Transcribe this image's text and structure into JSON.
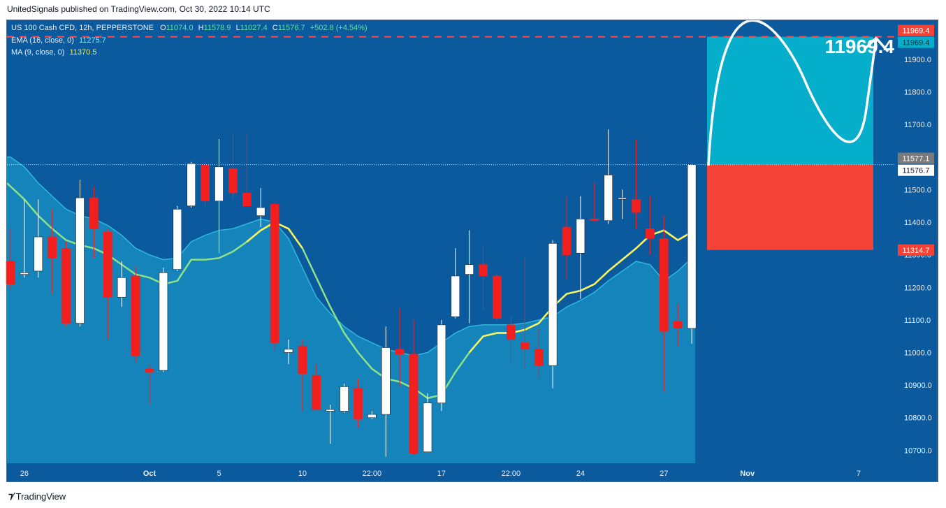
{
  "header": {
    "published": "UnitedSignals published on TradingView.com, Oct 30, 2022 10:14 UTC"
  },
  "legend": {
    "symbol": "US 100 Cash CFD, 12h, PEPPERSTONE",
    "o_label": "O",
    "o": "11074.0",
    "h_label": "H",
    "h": "11578.9",
    "l_label": "L",
    "l": "11027.4",
    "c_label": "C",
    "c": "11576.7",
    "change": "+502.8 (+4.54%)",
    "ema_label": "EMA (16, close, 0)",
    "ema_value": "11275.7",
    "ma_label": "MA (9, close, 0)",
    "ma_value": "11370.5"
  },
  "target_label": "11969.4",
  "footer": {
    "brand": "TradingView"
  },
  "colors": {
    "bg": "#0b5a9e",
    "up": "#ffffff",
    "down": "#f21f1f",
    "ema_fill": "#1a9bc9",
    "ma_line": "#fdf35a",
    "ema_line": "#8ee28a",
    "target": "#05aecb",
    "stop": "#f44336",
    "dash": "#ff4a4a"
  },
  "chart_data": {
    "type": "candlestick",
    "y_axis_unit": "USD",
    "ylim": [
      10660,
      12020
    ],
    "y_ticks": [
      10700,
      10800,
      10900,
      11000,
      11100,
      11200,
      11300,
      11400,
      11500,
      11600,
      11700,
      11800,
      11900
    ],
    "y_tick_labels": [
      "10700.0",
      "10800.0",
      "10900.0",
      "11000.0",
      "11100.0",
      "11200.0",
      "11300.0",
      "11400.0",
      "11500.0",
      "11600.0",
      "11700.0",
      "11800.0",
      "11900.0"
    ],
    "x_tick_labels": [
      "26",
      "Oct",
      "5",
      "10",
      "22:00",
      "17",
      "22:00",
      "24",
      "27",
      "Nov",
      "7"
    ],
    "x_tick_index": [
      1,
      10,
      15,
      21,
      26,
      31,
      36,
      41,
      47,
      53,
      61
    ],
    "candles": [
      {
        "o": 11280,
        "h": 11380,
        "l": 11195,
        "c": 11210
      },
      {
        "o": 11240,
        "h": 11470,
        "l": 11230,
        "c": 11245
      },
      {
        "o": 11250,
        "h": 11470,
        "l": 11230,
        "c": 11355
      },
      {
        "o": 11355,
        "h": 11440,
        "l": 11180,
        "c": 11290
      },
      {
        "o": 11320,
        "h": 11340,
        "l": 11080,
        "c": 11090
      },
      {
        "o": 11090,
        "h": 11530,
        "l": 11080,
        "c": 11475
      },
      {
        "o": 11475,
        "h": 11510,
        "l": 11290,
        "c": 11380
      },
      {
        "o": 11370,
        "h": 11380,
        "l": 11040,
        "c": 11170
      },
      {
        "o": 11170,
        "h": 11280,
        "l": 11140,
        "c": 11230
      },
      {
        "o": 11235,
        "h": 11265,
        "l": 10970,
        "c": 10990
      },
      {
        "o": 10950,
        "h": 10965,
        "l": 10840,
        "c": 10940
      },
      {
        "o": 10945,
        "h": 11260,
        "l": 10940,
        "c": 11245
      },
      {
        "o": 11255,
        "h": 11450,
        "l": 11250,
        "c": 11440
      },
      {
        "o": 11450,
        "h": 11585,
        "l": 11445,
        "c": 11580
      },
      {
        "o": 11575,
        "h": 11585,
        "l": 11450,
        "c": 11465
      },
      {
        "o": 11465,
        "h": 11655,
        "l": 11305,
        "c": 11570
      },
      {
        "o": 11565,
        "h": 11670,
        "l": 11470,
        "c": 11490
      },
      {
        "o": 11490,
        "h": 11670,
        "l": 11450,
        "c": 11450
      },
      {
        "o": 11420,
        "h": 11505,
        "l": 11385,
        "c": 11445
      },
      {
        "o": 11455,
        "h": 11460,
        "l": 11005,
        "c": 11030
      },
      {
        "o": 11000,
        "h": 11040,
        "l": 10965,
        "c": 11010
      },
      {
        "o": 11020,
        "h": 11040,
        "l": 10820,
        "c": 10935
      },
      {
        "o": 10930,
        "h": 10965,
        "l": 10825,
        "c": 10825
      },
      {
        "o": 10820,
        "h": 10840,
        "l": 10720,
        "c": 10825
      },
      {
        "o": 10820,
        "h": 10905,
        "l": 10815,
        "c": 10895
      },
      {
        "o": 10890,
        "h": 10920,
        "l": 10770,
        "c": 10795
      },
      {
        "o": 10800,
        "h": 10820,
        "l": 10795,
        "c": 10810
      },
      {
        "o": 10810,
        "h": 11080,
        "l": 10680,
        "c": 11015
      },
      {
        "o": 11010,
        "h": 11135,
        "l": 10895,
        "c": 10995
      },
      {
        "o": 10995,
        "h": 11100,
        "l": 10685,
        "c": 10690
      },
      {
        "o": 10695,
        "h": 10875,
        "l": 10695,
        "c": 10845
      },
      {
        "o": 10845,
        "h": 11100,
        "l": 10820,
        "c": 11085
      },
      {
        "o": 11110,
        "h": 11320,
        "l": 11105,
        "c": 11235
      },
      {
        "o": 11240,
        "h": 11375,
        "l": 11090,
        "c": 11270
      },
      {
        "o": 11270,
        "h": 11325,
        "l": 11130,
        "c": 11235
      },
      {
        "o": 11235,
        "h": 11240,
        "l": 11100,
        "c": 11105
      },
      {
        "o": 11085,
        "h": 11110,
        "l": 10960,
        "c": 11040
      },
      {
        "o": 11030,
        "h": 11290,
        "l": 10950,
        "c": 11010
      },
      {
        "o": 11010,
        "h": 11080,
        "l": 10920,
        "c": 10960
      },
      {
        "o": 10960,
        "h": 11345,
        "l": 10890,
        "c": 11335
      },
      {
        "o": 11385,
        "h": 11480,
        "l": 11225,
        "c": 11300
      },
      {
        "o": 11305,
        "h": 11480,
        "l": 11165,
        "c": 11410
      },
      {
        "o": 11410,
        "h": 11520,
        "l": 11400,
        "c": 11405
      },
      {
        "o": 11405,
        "h": 11685,
        "l": 11395,
        "c": 11545
      },
      {
        "o": 11475,
        "h": 11500,
        "l": 11410,
        "c": 11475
      },
      {
        "o": 11470,
        "h": 11655,
        "l": 11380,
        "c": 11430
      },
      {
        "o": 11380,
        "h": 11480,
        "l": 11300,
        "c": 11350
      },
      {
        "o": 11350,
        "h": 11420,
        "l": 10880,
        "c": 11065
      },
      {
        "o": 11095,
        "h": 11150,
        "l": 11020,
        "c": 11075
      },
      {
        "o": 11074,
        "h": 11578.9,
        "l": 11027.4,
        "c": 11576.7
      }
    ],
    "ema": [
      11600,
      11570,
      11520,
      11480,
      11440,
      11420,
      11410,
      11390,
      11360,
      11320,
      11300,
      11285,
      11290,
      11340,
      11360,
      11375,
      11380,
      11395,
      11410,
      11400,
      11350,
      11260,
      11170,
      11120,
      11080,
      11050,
      11030,
      11010,
      11000,
      10990,
      11000,
      11030,
      11060,
      11080,
      11085,
      11085,
      11085,
      11090,
      11100,
      11110,
      11140,
      11160,
      11185,
      11220,
      11250,
      11280,
      11270,
      11220,
      11250,
      11290
    ],
    "ma": [
      11520,
      11470,
      11420,
      11380,
      11345,
      11330,
      11320,
      11300,
      11270,
      11240,
      11230,
      11210,
      11220,
      11285,
      11285,
      11290,
      11310,
      11340,
      11375,
      11400,
      11380,
      11320,
      11230,
      11140,
      11060,
      11000,
      10950,
      10920,
      10910,
      10890,
      10860,
      10870,
      10940,
      11000,
      11050,
      11060,
      11060,
      11070,
      11090,
      11140,
      11180,
      11190,
      11210,
      11250,
      11285,
      11320,
      11360,
      11375,
      11345,
      11370
    ],
    "current_price": 11576.7,
    "axis_badges": {
      "target": "11969.4",
      "entry": "11577.1",
      "current": "11576.7",
      "stop": "11314.7"
    },
    "position": {
      "entry": 11577.1,
      "target": 11969.4,
      "stop": 11314.7
    }
  }
}
